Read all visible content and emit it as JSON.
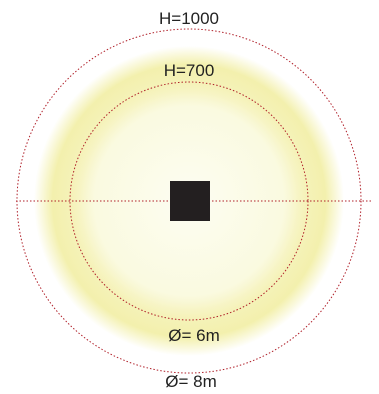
{
  "labels": {
    "outer_height": "H=1000",
    "inner_height": "H=700",
    "inner_diameter": "Ø= 6m",
    "outer_diameter": "Ø= 8m"
  },
  "colors": {
    "outer_glow": "#f4f1b0",
    "mid_glow": "#f7f5cc",
    "inner_glow": "#fbfbe6",
    "circle_stroke": "#b0202a",
    "center_square": "#231f20",
    "text": "#222222"
  },
  "icons": {
    "center": "luminaire-square-icon"
  }
}
